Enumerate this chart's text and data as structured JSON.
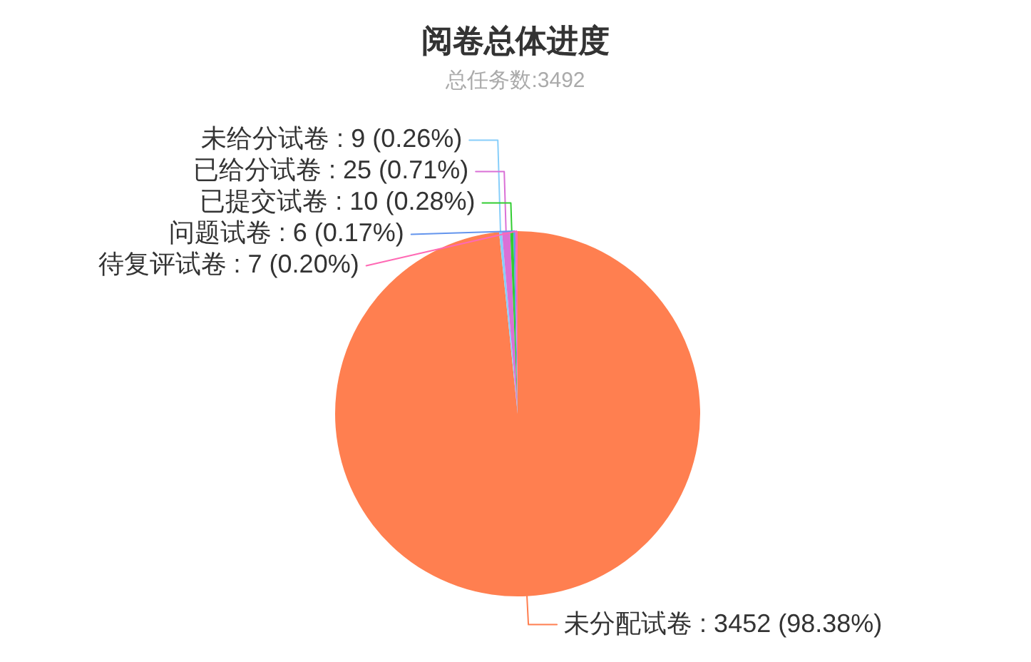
{
  "chart_data": {
    "type": "pie",
    "title": "阅卷总体进度",
    "subtitle": "总任务数:3492",
    "categories": [
      "未分配试卷",
      "未给分试卷",
      "已给分试卷",
      "已提交试卷",
      "问题试卷",
      "待复评试卷"
    ],
    "values": [
      3452,
      9,
      25,
      10,
      6,
      7
    ],
    "colors": [
      "#ff7f50",
      "#87cefa",
      "#da70d6",
      "#32cd32",
      "#6495ed",
      "#ff69b4"
    ],
    "value_labels": [
      "3452 (98.38%)",
      "9 (0.26%)",
      "25 (0.71%)",
      "10 (0.28%)",
      "6 (0.17%)",
      "7 (0.20%)"
    ]
  }
}
